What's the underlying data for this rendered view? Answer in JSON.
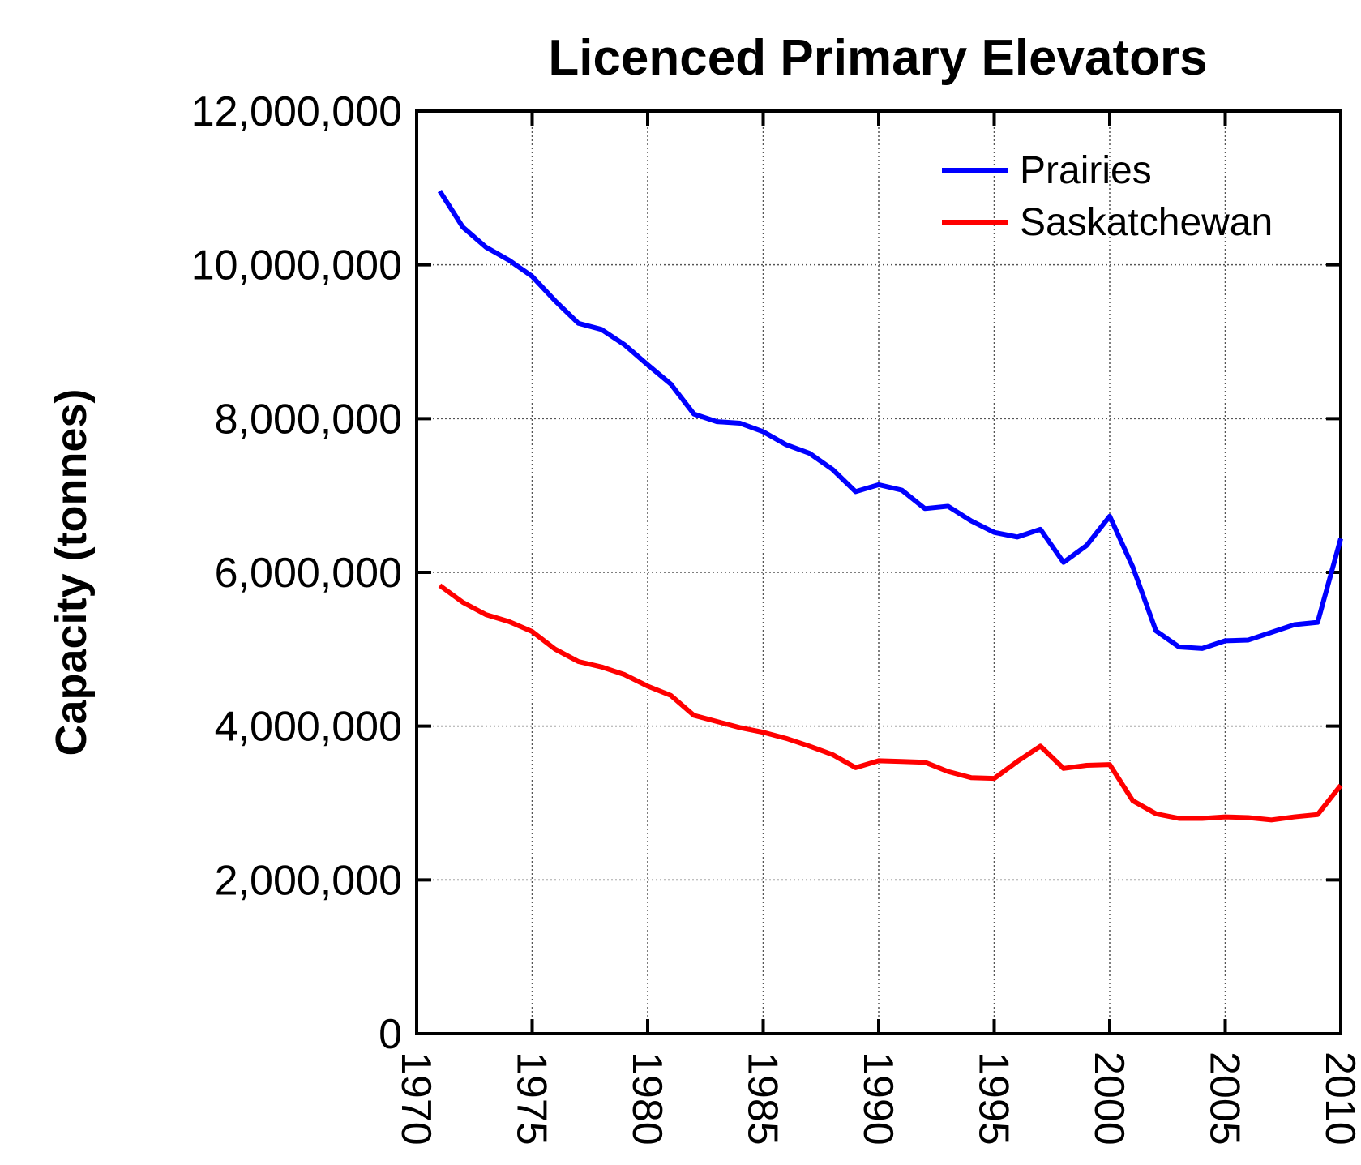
{
  "chart_data": {
    "type": "line",
    "title": "Licenced Primary Elevators",
    "ylabel": "Capacity (tonnes)",
    "x": [
      1971,
      1972,
      1973,
      1974,
      1975,
      1976,
      1977,
      1978,
      1979,
      1980,
      1981,
      1982,
      1983,
      1984,
      1985,
      1986,
      1987,
      1988,
      1989,
      1990,
      1991,
      1992,
      1993,
      1994,
      1995,
      1996,
      1997,
      1998,
      1999,
      2000,
      2001,
      2002,
      2003,
      2004,
      2005,
      2006,
      2007,
      2008,
      2009,
      2010
    ],
    "series": [
      {
        "name": "Prairies",
        "color": "#0000ff",
        "values": [
          10960000,
          10490000,
          10230000,
          10060000,
          9850000,
          9530000,
          9240000,
          9160000,
          8960000,
          8700000,
          8450000,
          8060000,
          7960000,
          7940000,
          7830000,
          7660000,
          7550000,
          7340000,
          7050000,
          7140000,
          7070000,
          6830000,
          6860000,
          6670000,
          6520000,
          6460000,
          6560000,
          6130000,
          6350000,
          6730000,
          6070000,
          5240000,
          5030000,
          5010000,
          5110000,
          5120000,
          5220000,
          5320000,
          5350000,
          6440000
        ]
      },
      {
        "name": "Saskatchewan",
        "color": "#ff0000",
        "values": [
          5830000,
          5610000,
          5450000,
          5360000,
          5230000,
          5000000,
          4840000,
          4770000,
          4670000,
          4520000,
          4400000,
          4140000,
          4060000,
          3980000,
          3920000,
          3840000,
          3740000,
          3630000,
          3460000,
          3550000,
          3540000,
          3530000,
          3410000,
          3330000,
          3320000,
          3540000,
          3740000,
          3450000,
          3490000,
          3500000,
          3030000,
          2860000,
          2800000,
          2800000,
          2820000,
          2810000,
          2780000,
          2820000,
          2850000,
          3230000
        ]
      }
    ],
    "xlim": [
      1970,
      2010
    ],
    "xticks": [
      1970,
      1975,
      1980,
      1985,
      1990,
      1995,
      2000,
      2005,
      2010
    ],
    "ylim": [
      0,
      12000000
    ],
    "yticks": [
      0,
      {
        "value": 2000000,
        "label": "2,000,000"
      },
      {
        "value": 4000000,
        "label": "4,000,000"
      },
      {
        "value": 6000000,
        "label": "6,000,000"
      },
      {
        "value": 8000000,
        "label": "8,000,000"
      },
      {
        "value": 10000000,
        "label": "10,000,000"
      },
      {
        "value": 12000000,
        "label": "12,000,000"
      }
    ],
    "grid": true,
    "legend": "upper right"
  }
}
